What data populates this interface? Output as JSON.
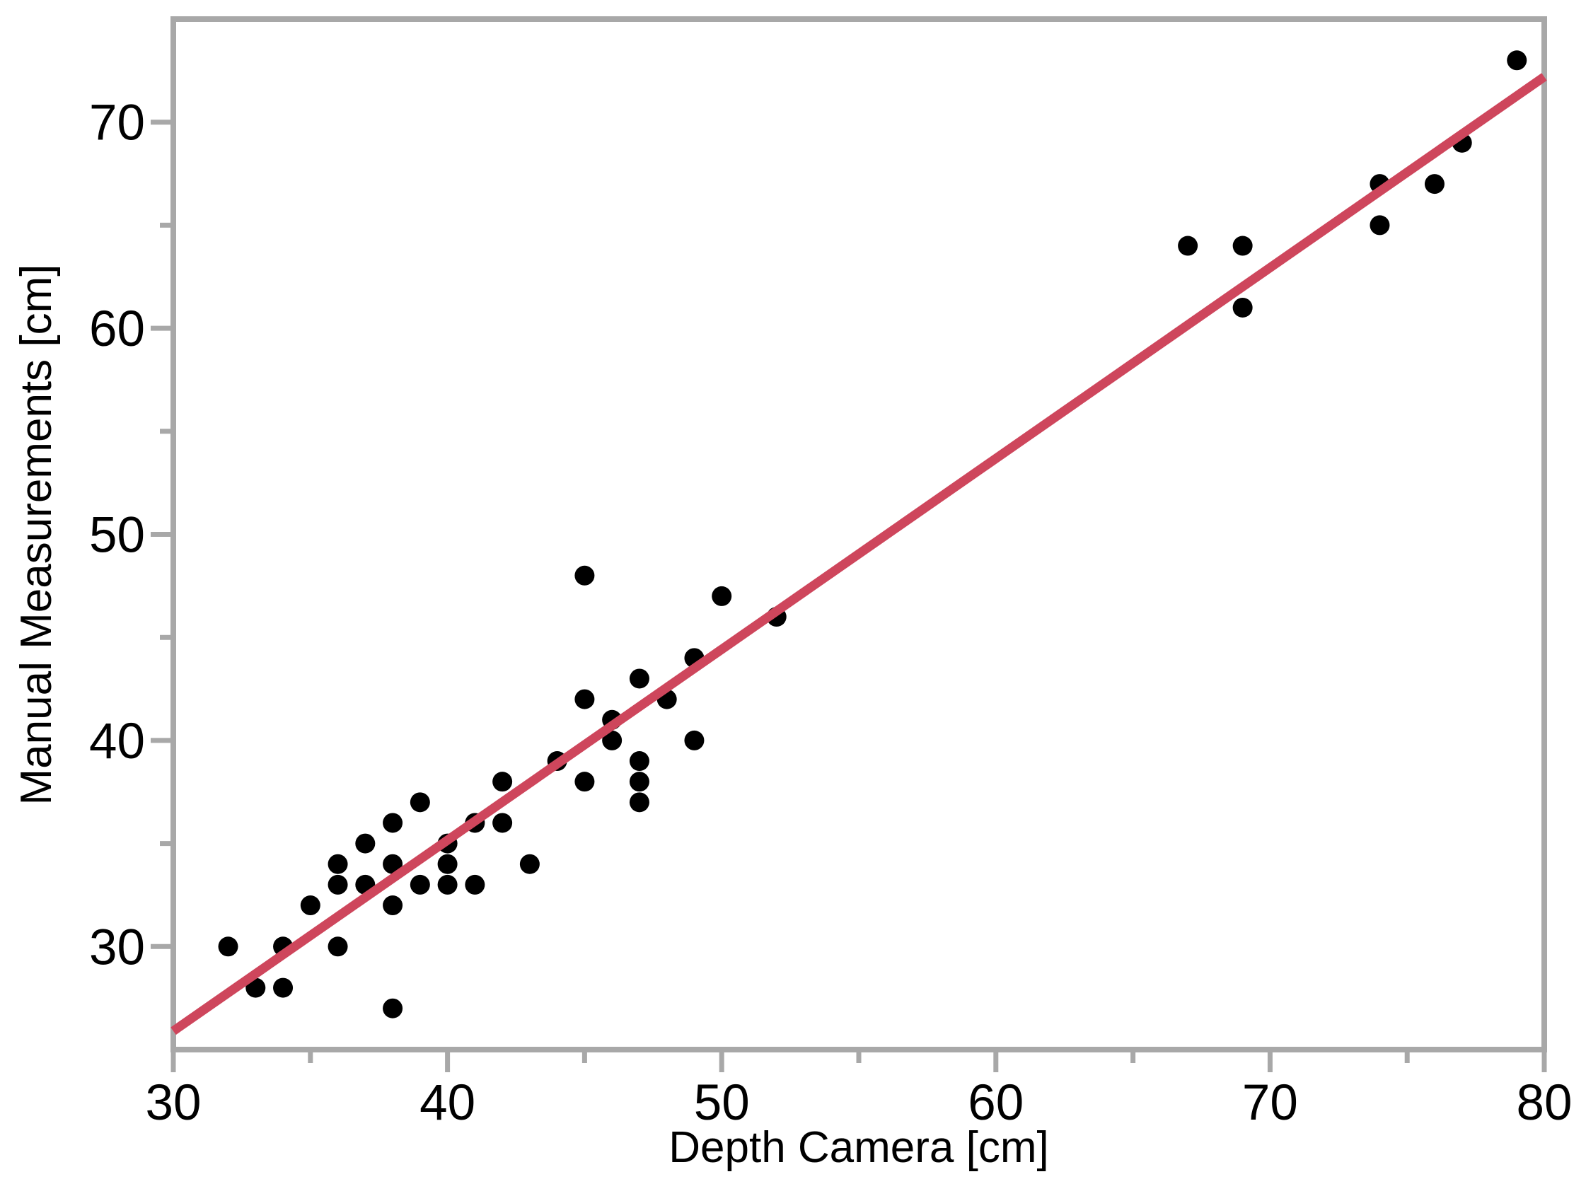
{
  "page": {
    "background": "#FFFFFF"
  },
  "chart_data": {
    "type": "scatter",
    "title": "",
    "xlabel": "Depth Camera [cm]",
    "ylabel": "Manual Measurements [cm]",
    "xlim": [
      30,
      80
    ],
    "ylim": [
      25,
      75
    ],
    "x_major_ticks": [
      30,
      40,
      50,
      60,
      70,
      80
    ],
    "x_minor_ticks": [
      35,
      45,
      55,
      65,
      75
    ],
    "y_major_ticks": [
      30,
      40,
      50,
      60,
      70
    ],
    "y_minor_ticks": [
      35,
      45,
      55,
      65
    ],
    "grid": false,
    "legend_position": "none",
    "axis_color": "#A8A8A8",
    "text_color": "#000000",
    "series": [
      {
        "name": "scatter-points",
        "type": "scatter",
        "marker": "circle",
        "color": "#000000",
        "points": [
          [
            32,
            30
          ],
          [
            33,
            28
          ],
          [
            34,
            28
          ],
          [
            34,
            30
          ],
          [
            35,
            32
          ],
          [
            36,
            30
          ],
          [
            36,
            33
          ],
          [
            36,
            34
          ],
          [
            37,
            33
          ],
          [
            37,
            35
          ],
          [
            38,
            27
          ],
          [
            38,
            32
          ],
          [
            38,
            34
          ],
          [
            38,
            36
          ],
          [
            39,
            33
          ],
          [
            39,
            37
          ],
          [
            40,
            33
          ],
          [
            40,
            34
          ],
          [
            40,
            35
          ],
          [
            41,
            33
          ],
          [
            41,
            36
          ],
          [
            42,
            36
          ],
          [
            42,
            38
          ],
          [
            43,
            34
          ],
          [
            44,
            39
          ],
          [
            45,
            38
          ],
          [
            45,
            42
          ],
          [
            45,
            48
          ],
          [
            46,
            40
          ],
          [
            46,
            41
          ],
          [
            47,
            37
          ],
          [
            47,
            38
          ],
          [
            47,
            39
          ],
          [
            47,
            43
          ],
          [
            48,
            42
          ],
          [
            49,
            40
          ],
          [
            49,
            44
          ],
          [
            50,
            47
          ],
          [
            52,
            46
          ],
          [
            67,
            64
          ],
          [
            69,
            61
          ],
          [
            69,
            64
          ],
          [
            74,
            65
          ],
          [
            74,
            67
          ],
          [
            76,
            67
          ],
          [
            77,
            69
          ],
          [
            79,
            73
          ]
        ]
      },
      {
        "name": "linear-fit-line",
        "type": "line",
        "color": "#CE465C",
        "endpoints": [
          [
            30,
            25.9
          ],
          [
            80,
            72.2
          ]
        ]
      }
    ]
  }
}
